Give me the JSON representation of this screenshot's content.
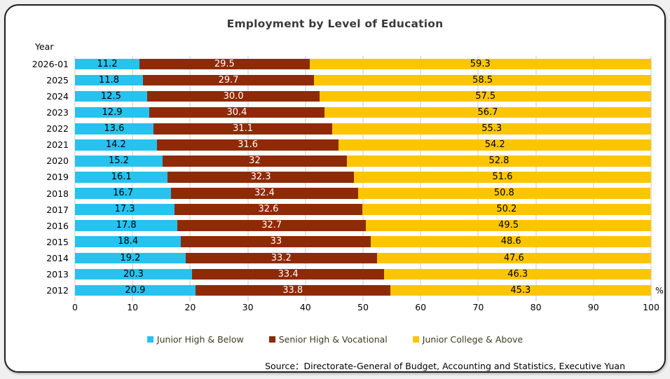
{
  "page": {
    "background": "#F0F0F0"
  },
  "card": {
    "background": "#FFFFFF",
    "border_color": "#1E1E1E"
  },
  "title": "Employment by Level of Education",
  "axis": {
    "y_title": "Year",
    "x_ticks": [
      "0",
      "10",
      "20",
      "30",
      "40",
      "50",
      "60",
      "70",
      "80",
      "90",
      "100"
    ],
    "x_unit": "%"
  },
  "legend": {
    "items": [
      {
        "label": "Junior High & Below",
        "color": "#27C2EF"
      },
      {
        "label": "Senior High & Vocational",
        "color": "#8E2A05"
      },
      {
        "label": "Junior College & Above",
        "color": "#FDC500"
      }
    ],
    "text_color": "#3C3C1F"
  },
  "source": "Source：Directorate-General of Budget, Accounting and Statistics, Executive Yuan",
  "colors": {
    "gridline": "#C9C9C9",
    "title_text": "#3A3A3A"
  },
  "chart_data": {
    "type": "bar",
    "orientation": "horizontal",
    "stacked": true,
    "title": "Employment by Level of Education",
    "ylabel": "Year",
    "xlabel": "%",
    "xlim": [
      0,
      100
    ],
    "grid": true,
    "legend_position": "bottom",
    "categories": [
      "2026-01",
      "2025",
      "2024",
      "2023",
      "2022",
      "2021",
      "2020",
      "2019",
      "2018",
      "2017",
      "2016",
      "2015",
      "2014",
      "2013",
      "2012"
    ],
    "series": [
      {
        "name": "Junior High & Below",
        "color": "#27C2EF",
        "label_color": "#000000",
        "values": [
          11.2,
          11.8,
          12.5,
          12.9,
          13.6,
          14.2,
          15.2,
          16.1,
          16.7,
          17.3,
          17.8,
          18.4,
          19.2,
          20.3,
          20.9
        ],
        "labels": [
          "11.2",
          "11.8",
          "12.5",
          "12.9",
          "13.6",
          "14.2",
          "15.2",
          "16.1",
          "16.7",
          "17.3",
          "17.8",
          "18.4",
          "19.2",
          "20.3",
          "20.9"
        ]
      },
      {
        "name": "Senior High & Vocational",
        "color": "#8E2A05",
        "label_color": "#FFFFFF",
        "values": [
          29.5,
          29.7,
          30.0,
          30.4,
          31.1,
          31.6,
          32,
          32.3,
          32.4,
          32.6,
          32.7,
          33,
          33.2,
          33.4,
          33.8
        ],
        "labels": [
          "29.5",
          "29.7",
          "30.0",
          "30.4",
          "31.1",
          "31.6",
          "32",
          "32.3",
          "32.4",
          "32.6",
          "32.7",
          "33",
          "33.2",
          "33.4",
          "33.8"
        ]
      },
      {
        "name": "Junior College & Above",
        "color": "#FDC500",
        "label_color": "#000000",
        "values": [
          59.3,
          58.5,
          57.5,
          56.7,
          55.3,
          54.2,
          52.8,
          51.6,
          50.8,
          50.2,
          49.5,
          48.6,
          47.6,
          46.3,
          45.3
        ],
        "labels": [
          "59.3",
          "58.5",
          "57.5",
          "56.7",
          "55.3",
          "54.2",
          "52.8",
          "51.6",
          "50.8",
          "50.2",
          "49.5",
          "48.6",
          "47.6",
          "46.3",
          "45.3"
        ]
      }
    ]
  }
}
